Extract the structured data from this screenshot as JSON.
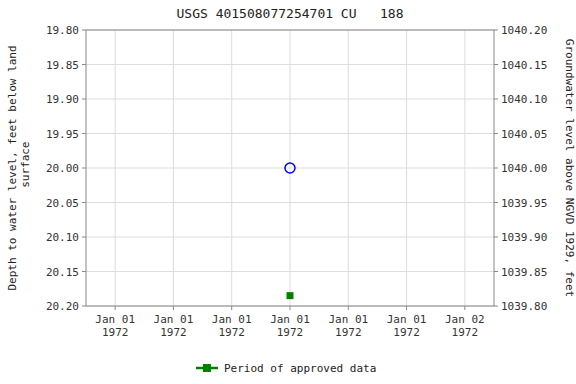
{
  "chart_data": {
    "type": "scatter",
    "title": "USGS 401508077254701 CU   188",
    "ylabel": "Depth to water level, feet below land\n surface",
    "y2label": "Groundwater level above NGVD 1929, feet",
    "categories": [
      "Jan 01\n1972",
      "Jan 01\n1972",
      "Jan 01\n1972",
      "Jan 01\n1972",
      "Jan 01\n1972",
      "Jan 01\n1972",
      "Jan 02\n1972"
    ],
    "series": [
      {
        "color": "blue",
        "marker": "circle",
        "values": [
          null,
          null,
          null,
          20.0,
          null,
          null,
          null
        ]
      },
      {
        "name": "Period of approved data",
        "color": "#008000",
        "marker": "square",
        "values": [
          null,
          null,
          null,
          20.185,
          null,
          null,
          null
        ]
      }
    ],
    "ylim": [
      20.2,
      19.8
    ],
    "yticks": [
      {
        "value": 19.8,
        "label": "19.80"
      },
      19.85,
      {
        "value": 19.9,
        "label": "19.90"
      },
      19.95,
      {
        "value": 20.0,
        "label": "20.00"
      },
      20.05,
      {
        "value": 20.1,
        "label": "20.10"
      },
      20.15,
      {
        "value": 20.2,
        "label": "20.20"
      }
    ],
    "y2lim": [
      1039.8,
      1040.2
    ],
    "y2ticks": [
      {
        "value": 1039.8,
        "label": "1039.80"
      },
      1039.85,
      {
        "value": 1039.9,
        "label": "1039.90"
      },
      1039.95,
      {
        "value": 1040.0,
        "label": "1040.00"
      },
      1040.05,
      {
        "value": 1040.1,
        "label": "1040.10"
      },
      1040.15,
      {
        "value": 1040.2,
        "label": "1040.20"
      }
    ],
    "grid": true,
    "legend": "bottom"
  }
}
